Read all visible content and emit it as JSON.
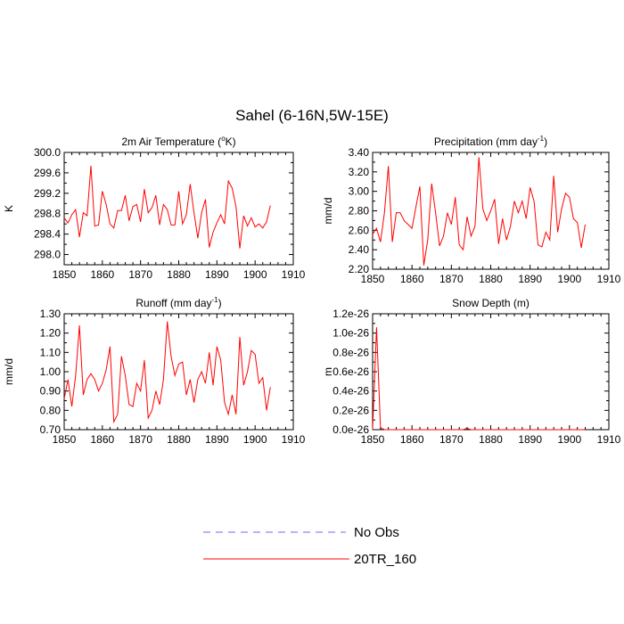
{
  "figure": {
    "title": "Sahel (6-16N,5W-15E)"
  },
  "chart_data": [
    {
      "type": "line",
      "title": "2m Air Temperature (",
      "title_sup": "o",
      "title_end": "K)",
      "ylabel": "K",
      "xlabel": "",
      "xlim": [
        1850,
        1910
      ],
      "ylim": [
        297.8,
        300.0
      ],
      "xticks": [
        1850,
        1860,
        1870,
        1880,
        1890,
        1900,
        1910
      ],
      "yticks": [
        298.0,
        298.4,
        298.8,
        299.2,
        299.6,
        300.0
      ],
      "ytick_labels": [
        "298.0",
        "298.4",
        "298.8",
        "299.2",
        "299.6",
        "300.0"
      ],
      "x_start": 1850,
      "series": [
        {
          "name": "20TR_160",
          "color": "#ff0000",
          "values": [
            298.72,
            298.62,
            298.78,
            298.88,
            298.34,
            298.82,
            298.76,
            299.74,
            298.56,
            298.58,
            299.24,
            298.98,
            298.6,
            298.52,
            298.86,
            298.86,
            299.16,
            298.66,
            298.94,
            298.98,
            298.64,
            299.28,
            298.82,
            298.92,
            299.16,
            298.58,
            298.98,
            298.88,
            298.58,
            298.58,
            299.24,
            298.6,
            298.78,
            299.38,
            298.82,
            298.32,
            298.82,
            299.08,
            298.14,
            298.44,
            298.62,
            298.78,
            298.6,
            299.44,
            299.3,
            298.94,
            298.12,
            298.76,
            298.56,
            298.72,
            298.54,
            298.6,
            298.52,
            298.64,
            298.96
          ]
        }
      ]
    },
    {
      "type": "line",
      "title": "Precipitation (mm day",
      "title_sup": "-1",
      "title_end": ")",
      "ylabel": "mm/d",
      "xlabel": "",
      "xlim": [
        1850,
        1910
      ],
      "ylim": [
        2.2,
        3.4
      ],
      "xticks": [
        1850,
        1860,
        1870,
        1880,
        1890,
        1900,
        1910
      ],
      "yticks": [
        2.2,
        2.4,
        2.6,
        2.8,
        3.0,
        3.2,
        3.4
      ],
      "ytick_labels": [
        "2.20",
        "2.40",
        "2.60",
        "2.80",
        "3.00",
        "3.20",
        "3.40"
      ],
      "x_start": 1850,
      "series": [
        {
          "name": "20TR_160",
          "color": "#ff0000",
          "values": [
            2.56,
            2.62,
            2.48,
            2.78,
            3.26,
            2.48,
            2.78,
            2.78,
            2.7,
            2.66,
            2.62,
            2.84,
            3.05,
            2.24,
            2.5,
            3.08,
            2.78,
            2.44,
            2.54,
            2.78,
            2.66,
            2.94,
            2.45,
            2.4,
            2.74,
            2.54,
            2.64,
            3.35,
            2.82,
            2.7,
            2.8,
            2.92,
            2.46,
            2.72,
            2.5,
            2.64,
            2.9,
            2.78,
            2.9,
            2.72,
            3.04,
            2.9,
            2.45,
            2.43,
            2.58,
            2.5,
            3.16,
            2.58,
            2.82,
            2.98,
            2.94,
            2.72,
            2.68,
            2.42,
            2.66
          ]
        }
      ]
    },
    {
      "type": "line",
      "title": "Runoff (mm day",
      "title_sup": "-1",
      "title_end": ")",
      "ylabel": "mm/d",
      "xlabel": "",
      "xlim": [
        1850,
        1910
      ],
      "ylim": [
        0.7,
        1.3
      ],
      "xticks": [
        1850,
        1860,
        1870,
        1880,
        1890,
        1900,
        1910
      ],
      "yticks": [
        0.7,
        0.8,
        0.9,
        1.0,
        1.1,
        1.2,
        1.3
      ],
      "ytick_labels": [
        "0.70",
        "0.80",
        "0.90",
        "1.00",
        "1.10",
        "1.20",
        "1.30"
      ],
      "x_start": 1850,
      "series": [
        {
          "name": "20TR_160",
          "color": "#ff0000",
          "values": [
            0.86,
            0.96,
            0.82,
            0.98,
            1.24,
            0.88,
            0.96,
            0.99,
            0.96,
            0.9,
            0.94,
            1.01,
            1.13,
            0.74,
            0.78,
            1.08,
            0.98,
            0.83,
            0.82,
            0.94,
            0.9,
            1.06,
            0.76,
            0.8,
            0.9,
            0.83,
            0.96,
            1.26,
            1.08,
            0.98,
            1.04,
            1.05,
            0.88,
            0.96,
            0.84,
            0.96,
            1.0,
            0.94,
            1.1,
            0.93,
            1.13,
            1.06,
            0.84,
            0.78,
            0.88,
            0.78,
            1.18,
            0.93,
            1.0,
            1.11,
            1.09,
            0.94,
            0.97,
            0.8,
            0.92
          ]
        }
      ]
    },
    {
      "type": "line",
      "title": "Snow Depth (m)",
      "title_sup": "",
      "title_end": "",
      "ylabel": "m",
      "xlabel": "",
      "xlim": [
        1850,
        1910
      ],
      "ylim": [
        0,
        1.2e-26
      ],
      "xticks": [
        1850,
        1860,
        1870,
        1880,
        1890,
        1900,
        1910
      ],
      "yticks": [
        0,
        2e-27,
        4e-27,
        6e-27,
        8e-27,
        1e-26,
        1.2e-26
      ],
      "ytick_labels": [
        "0.0e-26",
        "0.2e-26",
        "0.4e-26",
        "0.6e-26",
        "0.8e-26",
        "1.0e-26",
        "1.2e-26"
      ],
      "x_start": 1850,
      "series": [
        {
          "name": "20TR_160",
          "color": "#ff0000",
          "values": [
            0,
            1.06e-26,
            2e-28,
            0,
            0,
            0,
            0,
            0,
            0,
            0,
            0,
            0,
            0,
            0,
            0,
            0,
            0,
            0,
            0,
            0,
            0,
            0,
            0,
            0,
            1.5e-28,
            0,
            0,
            0,
            0,
            0,
            0,
            0,
            0,
            0,
            0,
            0,
            0,
            0,
            0,
            0,
            0,
            0,
            0,
            0,
            0,
            0,
            0,
            0,
            0,
            0,
            0,
            0,
            0,
            0,
            0
          ]
        }
      ]
    }
  ],
  "legend": {
    "items": [
      {
        "label": "No Obs",
        "color": "#6a6aff",
        "style": "dashed"
      },
      {
        "label": "20TR_160",
        "color": "#ff0000",
        "style": "solid"
      }
    ]
  }
}
